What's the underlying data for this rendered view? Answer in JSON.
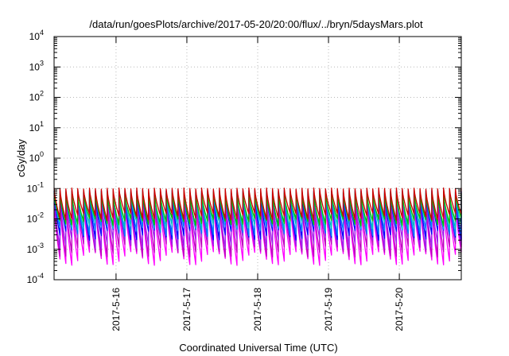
{
  "chart_data": {
    "type": "line",
    "title": "/data/run/goesPlots/archive/2017-05-20/20:00/flux/../bryn/5daysMars.plot",
    "xlabel": "Coordinated Universal Time (UTC)",
    "ylabel": "cGy/day",
    "scale_y": "log",
    "ylim": [
      0.0001,
      10000
    ],
    "xlim": [
      "2017-05-15 03:00",
      "2017-05-20 21:00"
    ],
    "grid": true,
    "x_ticks": [
      "2017-5-16",
      "2017-5-17",
      "2017-5-18",
      "2017-5-19",
      "2017-5-20"
    ],
    "y_ticks": [
      {
        "value": 0.0001,
        "base": "10",
        "exp": "-4"
      },
      {
        "value": 0.001,
        "base": "10",
        "exp": "-3"
      },
      {
        "value": 0.01,
        "base": "10",
        "exp": "-2"
      },
      {
        "value": 0.1,
        "base": "10",
        "exp": "-1"
      },
      {
        "value": 1,
        "base": "10",
        "exp": "0"
      },
      {
        "value": 10,
        "base": "10",
        "exp": "1"
      },
      {
        "value": 100,
        "base": "10",
        "exp": "2"
      },
      {
        "value": 1000,
        "base": "10",
        "exp": "3"
      },
      {
        "value": 10000,
        "base": "10",
        "exp": "4"
      }
    ],
    "cycle_hours": 2.0,
    "cycle_count": 70,
    "series": [
      {
        "color": "#ff00ff",
        "peak": 0.035,
        "trough": 0.0005
      },
      {
        "color": "#c000c0",
        "peak": 0.05,
        "trough": 0.0009
      },
      {
        "color": "#a020f0",
        "peak": 0.065,
        "trough": 0.0016
      },
      {
        "color": "#0000ff",
        "peak": 0.08,
        "trough": 0.003
      },
      {
        "color": "#0080ff",
        "peak": 0.085,
        "trough": 0.004
      },
      {
        "color": "#00c0c0",
        "peak": 0.075,
        "trough": 0.006
      },
      {
        "color": "#00c000",
        "peak": 0.07,
        "trough": 0.008
      },
      {
        "color": "#cc0000",
        "peak": 0.1,
        "trough": 0.012
      }
    ]
  }
}
